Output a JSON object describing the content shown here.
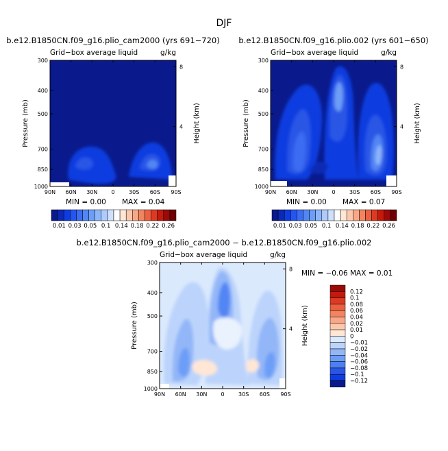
{
  "figure": {
    "title": "DJF"
  },
  "palette": {
    "neg": [
      "#0a1a8c",
      "#0c29b5",
      "#0f3ce0",
      "#2455f0",
      "#3b6cf2",
      "#5286f4",
      "#6d9ef7",
      "#8db6fa",
      "#aecbfb",
      "#cfe0fd"
    ],
    "pos": [
      "#ffe6d5",
      "#fcc8ad",
      "#f8a887",
      "#f2855f",
      "#ea6040",
      "#dc3a22",
      "#c41a0e",
      "#9a0a08",
      "#6e0004"
    ],
    "bg_zero": "#ffffff"
  },
  "chart_data": [
    {
      "type": "contour",
      "panel": "top-left",
      "title": "b.e12.B1850CN.f09_g16.plio_cam2000 (yrs 691−720)",
      "subtitle_left": "Grid−box average liquid",
      "subtitle_right": "g/kg",
      "ylabel": "Pressure (mb)",
      "ylabel_right": "Height (km)",
      "x_ticks": [
        "90N",
        "60N",
        "30N",
        "0",
        "30S",
        "60S",
        "90S"
      ],
      "y_ticks": [
        "300",
        "400",
        "500",
        "700",
        "850",
        "1000"
      ],
      "y_ticks_right": [
        "8",
        "4"
      ],
      "min_label": "MIN =    0.00",
      "max_label": "MAX =   0.04",
      "min": 0.0,
      "max": 0.04
    },
    {
      "type": "contour",
      "panel": "top-right",
      "title": "b.e12.B1850CN.f09_g16.plio.002 (yrs 601−650)",
      "subtitle_left": "Grid−box average liquid",
      "subtitle_right": "g/kg",
      "ylabel": "Pressure (mb)",
      "ylabel_right": "Height (km)",
      "x_ticks": [
        "90N",
        "60N",
        "30N",
        "0",
        "30S",
        "60S",
        "90S"
      ],
      "y_ticks": [
        "300",
        "400",
        "500",
        "700",
        "850",
        "1000"
      ],
      "y_ticks_right": [
        "8",
        "4"
      ],
      "min_label": "MIN =    0.00",
      "max_label": "MAX =   0.07",
      "min": 0.0,
      "max": 0.07
    },
    {
      "type": "contour",
      "panel": "bottom",
      "title": "b.e12.B1850CN.f09_g16.plio_cam2000 − b.e12.B1850CN.f09_g16.plio.002",
      "subtitle_left": "Grid−box average liquid",
      "subtitle_right": "g/kg",
      "ylabel": "Pressure (mb)",
      "ylabel_right": "Height (km)",
      "x_ticks": [
        "90N",
        "60N",
        "30N",
        "0",
        "30S",
        "60S",
        "90S"
      ],
      "y_ticks": [
        "300",
        "400",
        "500",
        "700",
        "850",
        "1000"
      ],
      "y_ticks_right": [
        "8",
        "4"
      ],
      "minmax_label": "MIN =   −0.06   MAX =    0.01",
      "min": -0.06,
      "max": 0.01
    }
  ],
  "colorbar_top": {
    "labels": [
      "0.01",
      "0.03",
      "0.05",
      "0.1",
      "0.14",
      "0.18",
      "0.22",
      "0.26"
    ],
    "colors": [
      "#0a1a8c",
      "#0c29b5",
      "#0f3ce0",
      "#2455f0",
      "#3b6cf2",
      "#5286f4",
      "#6d9ef7",
      "#8db6fa",
      "#aecbfb",
      "#cfe0fd",
      "#ffffff",
      "#ffe6d5",
      "#fcc8ad",
      "#f8a887",
      "#f2855f",
      "#ea6040",
      "#dc3a22",
      "#c41a0e",
      "#9a0a08",
      "#6e0004"
    ]
  },
  "colorbar_diff": {
    "labels": [
      "0.12",
      "0.1",
      "0.08",
      "0.06",
      "0.04",
      "0.02",
      "0.01",
      "0",
      "−0.01",
      "−0.02",
      "−0.04",
      "−0.06",
      "−0.08",
      "−0.1",
      "−0.12"
    ],
    "colors": [
      "#9a0a08",
      "#c41a0e",
      "#dc3a22",
      "#ea6040",
      "#f2855f",
      "#f8a887",
      "#fcc8ad",
      "#ffe6d5",
      "#dbe9fd",
      "#bcd4fb",
      "#93b6f8",
      "#6d9ef7",
      "#4d7ef3",
      "#2a56e6",
      "#0f3ce0",
      "#0a1a8c"
    ]
  }
}
